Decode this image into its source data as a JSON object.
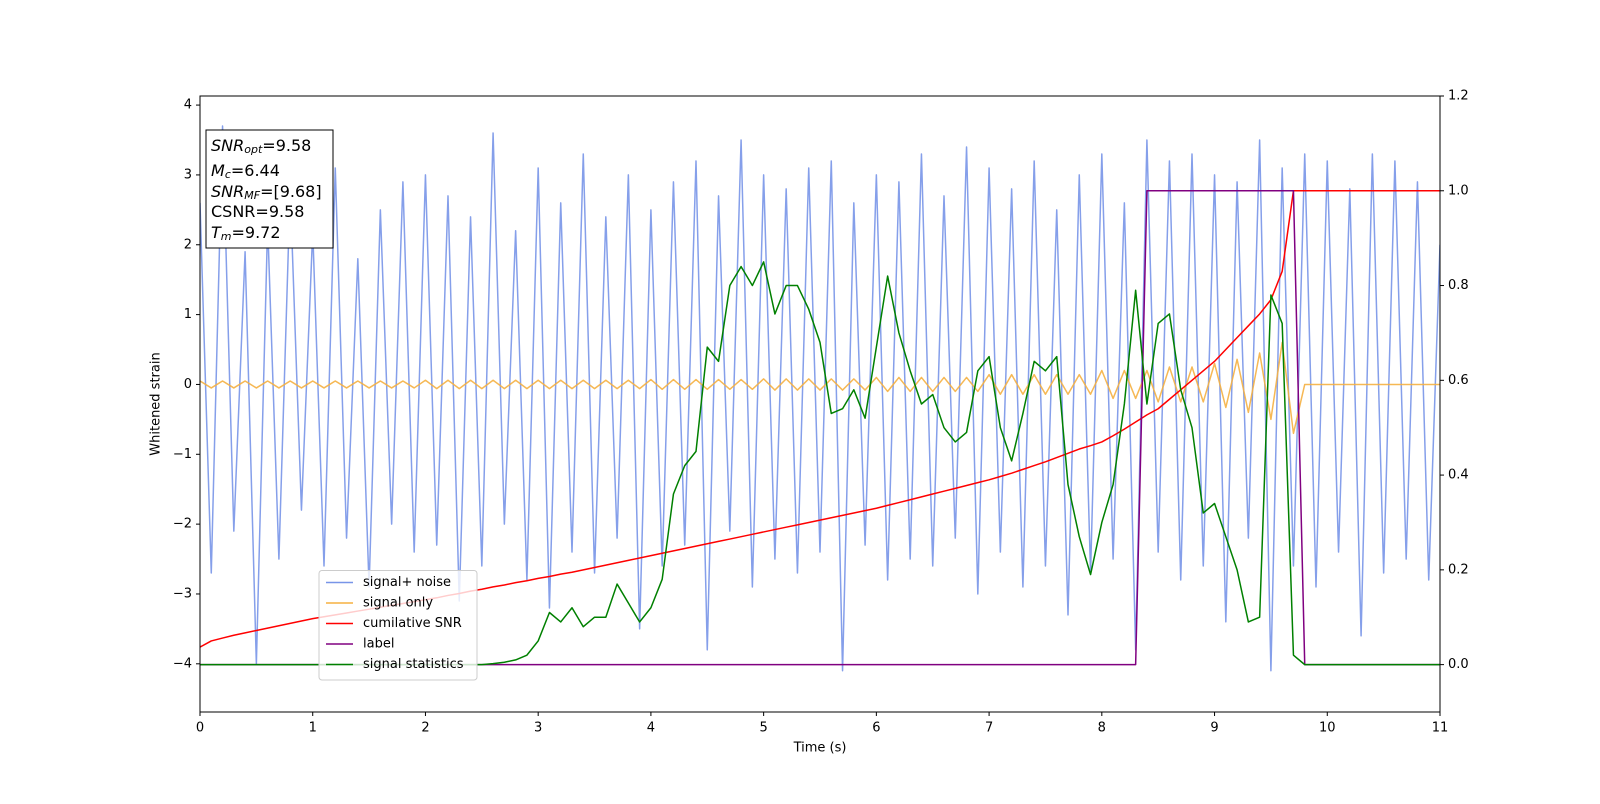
{
  "chart_data": {
    "type": "line",
    "xlabel": "Time (s)",
    "ylabel": "Whitened strain",
    "xlim": [
      0,
      11
    ],
    "ylim": [
      -4.69,
      4.13
    ],
    "y2lim": [
      -0.1,
      1.2
    ],
    "xticks": [
      0,
      1,
      2,
      3,
      4,
      5,
      6,
      7,
      8,
      9,
      10,
      11
    ],
    "yticks": [
      {
        "value": -4,
        "label": "−4"
      },
      {
        "value": -3,
        "label": "−3"
      },
      {
        "value": -2,
        "label": "−2"
      },
      {
        "value": -1,
        "label": "−1"
      },
      0,
      1,
      2,
      3,
      4
    ],
    "y2ticks": [
      {
        "value": 0,
        "label": "0.0"
      },
      {
        "value": 0.2,
        "label": "0.2"
      },
      {
        "value": 0.4,
        "label": "0.4"
      },
      {
        "value": 0.6,
        "label": "0.6"
      },
      {
        "value": 0.8,
        "label": "0.8"
      },
      {
        "value": 1,
        "label": "1.0"
      },
      {
        "value": 1.2,
        "label": "1.2"
      }
    ],
    "legend_loc": "lower left",
    "annotation": [
      [
        "SNR",
        "opt",
        "=9.58"
      ],
      [
        "M",
        "c",
        "=6.44"
      ],
      [
        "SNR",
        "MF",
        "=[9.68]"
      ],
      [
        "CSNR=9.58"
      ],
      [
        "T",
        "m",
        "=9.72"
      ]
    ],
    "x": [
      0,
      0.1,
      0.2,
      0.3,
      0.4,
      0.5,
      0.6,
      0.7,
      0.8,
      0.9,
      1,
      1.1,
      1.2,
      1.3,
      1.4,
      1.5,
      1.6,
      1.7,
      1.8,
      1.9,
      2,
      2.1,
      2.2,
      2.3,
      2.4,
      2.5,
      2.6,
      2.7,
      2.8,
      2.9,
      3,
      3.1,
      3.2,
      3.3,
      3.4,
      3.5,
      3.6,
      3.7,
      3.8,
      3.9,
      4,
      4.1,
      4.2,
      4.3,
      4.4,
      4.5,
      4.6,
      4.7,
      4.8,
      4.9,
      5,
      5.1,
      5.2,
      5.3,
      5.4,
      5.5,
      5.6,
      5.7,
      5.8,
      5.9,
      6,
      6.1,
      6.2,
      6.3,
      6.4,
      6.5,
      6.6,
      6.7,
      6.8,
      6.9,
      7,
      7.1,
      7.2,
      7.3,
      7.4,
      7.5,
      7.6,
      7.7,
      7.8,
      7.9,
      8,
      8.1,
      8.2,
      8.3,
      8.4,
      8.5,
      8.6,
      8.7,
      8.8,
      8.9,
      9,
      9.1,
      9.2,
      9.3,
      9.4,
      9.5,
      9.6,
      9.7,
      9.8,
      9.9,
      10,
      10.1,
      10.2,
      10.3,
      10.4,
      10.5,
      10.6,
      10.7,
      10.8,
      10.9,
      11
    ],
    "series": [
      {
        "name": "signal+ noise",
        "color": "#7895e8",
        "values": [
          2.6,
          -2.7,
          3.7,
          -2.1,
          1.9,
          -4.0,
          2.3,
          -2.5,
          2.8,
          -1.8,
          2.2,
          -2.6,
          3.1,
          -2.2,
          1.8,
          -2.9,
          2.5,
          -2.0,
          2.9,
          -2.4,
          3.0,
          -2.3,
          2.7,
          -3.1,
          2.4,
          -2.6,
          3.6,
          -2.0,
          2.2,
          -2.8,
          3.1,
          -3.2,
          2.6,
          -2.4,
          3.3,
          -2.7,
          2.4,
          -2.2,
          3.0,
          -3.5,
          2.5,
          -2.6,
          2.9,
          -2.3,
          3.2,
          -3.8,
          2.7,
          -2.1,
          3.5,
          -2.9,
          3.0,
          -2.5,
          2.8,
          -2.7,
          3.1,
          -2.4,
          3.2,
          -4.1,
          2.6,
          -2.3,
          3.0,
          -2.8,
          2.9,
          -2.5,
          3.3,
          -2.6,
          2.7,
          -2.2,
          3.4,
          -3.0,
          3.1,
          -2.4,
          2.8,
          -2.9,
          3.2,
          -2.6,
          2.5,
          -3.3,
          3.0,
          -2.7,
          3.3,
          -2.5,
          2.6,
          -3.8,
          3.5,
          -2.4,
          3.2,
          -2.8,
          3.3,
          -2.6,
          3.0,
          -3.4,
          2.9,
          -2.2,
          3.5,
          -4.1,
          3.1,
          -2.6,
          3.3,
          -2.9,
          3.2,
          -2.4,
          2.8,
          -3.6,
          3.3,
          -2.7,
          3.2,
          -2.5,
          2.9,
          -2.8,
          2.0
        ]
      },
      {
        "name": "signal only",
        "color": "#f5b041",
        "values": [
          0.05,
          -0.05,
          0.05,
          -0.05,
          0.05,
          -0.05,
          0.05,
          -0.05,
          0.05,
          -0.05,
          0.05,
          -0.05,
          0.05,
          -0.05,
          0.05,
          -0.05,
          0.05,
          -0.05,
          0.05,
          -0.05,
          0.06,
          -0.06,
          0.06,
          -0.06,
          0.06,
          -0.06,
          0.06,
          -0.06,
          0.06,
          -0.06,
          0.06,
          -0.06,
          0.06,
          -0.06,
          0.06,
          -0.06,
          0.06,
          -0.06,
          0.06,
          -0.06,
          0.07,
          -0.07,
          0.07,
          -0.07,
          0.07,
          -0.07,
          0.07,
          -0.07,
          0.07,
          -0.07,
          0.08,
          -0.08,
          0.08,
          -0.08,
          0.08,
          -0.08,
          0.08,
          -0.08,
          0.08,
          -0.08,
          0.1,
          -0.1,
          0.1,
          -0.1,
          0.1,
          -0.1,
          0.1,
          -0.1,
          0.1,
          -0.1,
          0.14,
          -0.14,
          0.14,
          -0.14,
          0.14,
          -0.14,
          0.14,
          -0.14,
          0.14,
          -0.14,
          0.2,
          -0.2,
          0.2,
          -0.2,
          0.2,
          -0.25,
          0.25,
          -0.25,
          0.25,
          -0.25,
          0.3,
          -0.33,
          0.36,
          -0.4,
          0.45,
          -0.5,
          0.6,
          -0.7,
          0,
          0,
          0,
          0,
          0,
          0,
          0,
          0,
          0,
          0,
          0,
          0,
          0
        ]
      },
      {
        "name": "cumilative SNR",
        "color": "#ff0000",
        "axis": "y2",
        "values": [
          0.037,
          0.05,
          0.056,
          0.062,
          0.067,
          0.072,
          0.077,
          0.082,
          0.087,
          0.092,
          0.097,
          0.101,
          0.105,
          0.109,
          0.113,
          0.117,
          0.121,
          0.125,
          0.129,
          0.133,
          0.137,
          0.141,
          0.146,
          0.15,
          0.155,
          0.159,
          0.164,
          0.168,
          0.173,
          0.177,
          0.182,
          0.186,
          0.191,
          0.195,
          0.2,
          0.205,
          0.21,
          0.215,
          0.22,
          0.225,
          0.23,
          0.235,
          0.24,
          0.245,
          0.25,
          0.255,
          0.26,
          0.265,
          0.27,
          0.275,
          0.28,
          0.285,
          0.29,
          0.295,
          0.3,
          0.305,
          0.31,
          0.315,
          0.32,
          0.325,
          0.33,
          0.336,
          0.342,
          0.348,
          0.354,
          0.36,
          0.366,
          0.372,
          0.378,
          0.384,
          0.39,
          0.397,
          0.404,
          0.412,
          0.42,
          0.428,
          0.437,
          0.446,
          0.455,
          0.462,
          0.47,
          0.483,
          0.497,
          0.512,
          0.527,
          0.54,
          0.56,
          0.58,
          0.6,
          0.62,
          0.64,
          0.665,
          0.69,
          0.715,
          0.74,
          0.77,
          0.83,
          1,
          1,
          1,
          1,
          1,
          1,
          1,
          1,
          1,
          1,
          1,
          1,
          1,
          1
        ]
      },
      {
        "name": "label",
        "color": "#800080",
        "axis": "y2",
        "values": [
          0,
          0,
          0,
          0,
          0,
          0,
          0,
          0,
          0,
          0,
          0,
          0,
          0,
          0,
          0,
          0,
          0,
          0,
          0,
          0,
          0,
          0,
          0,
          0,
          0,
          0,
          0,
          0,
          0,
          0,
          0,
          0,
          0,
          0,
          0,
          0,
          0,
          0,
          0,
          0,
          0,
          0,
          0,
          0,
          0,
          0,
          0,
          0,
          0,
          0,
          0,
          0,
          0,
          0,
          0,
          0,
          0,
          0,
          0,
          0,
          0,
          0,
          0,
          0,
          0,
          0,
          0,
          0,
          0,
          0,
          0,
          0,
          0,
          0,
          0,
          0,
          0,
          0,
          0,
          0,
          0,
          0,
          0,
          0,
          1,
          1,
          1,
          1,
          1,
          1,
          1,
          1,
          1,
          1,
          1,
          1,
          1,
          1,
          0,
          0,
          0,
          0,
          0,
          0,
          0,
          0,
          0,
          0,
          0,
          0,
          0
        ]
      },
      {
        "name": "signal statistics",
        "color": "#008000",
        "axis": "y2",
        "values": [
          0,
          0,
          0,
          0,
          0,
          0,
          0,
          0,
          0,
          0,
          0,
          0,
          0,
          0,
          0,
          0,
          0,
          0,
          0,
          0,
          0,
          0,
          0,
          0,
          0,
          0,
          0.002,
          0.005,
          0.01,
          0.02,
          0.05,
          0.11,
          0.09,
          0.12,
          0.08,
          0.1,
          0.1,
          0.17,
          0.13,
          0.09,
          0.12,
          0.18,
          0.36,
          0.42,
          0.45,
          0.67,
          0.64,
          0.8,
          0.84,
          0.8,
          0.85,
          0.74,
          0.8,
          0.8,
          0.75,
          0.68,
          0.53,
          0.54,
          0.58,
          0.52,
          0.67,
          0.82,
          0.7,
          0.62,
          0.55,
          0.57,
          0.5,
          0.47,
          0.49,
          0.62,
          0.65,
          0.5,
          0.43,
          0.53,
          0.64,
          0.62,
          0.65,
          0.38,
          0.27,
          0.19,
          0.3,
          0.38,
          0.55,
          0.79,
          0.55,
          0.72,
          0.74,
          0.58,
          0.5,
          0.32,
          0.34,
          0.27,
          0.2,
          0.09,
          0.1,
          0.78,
          0.72,
          0.02,
          0,
          0,
          0,
          0,
          0,
          0,
          0,
          0,
          0,
          0,
          0,
          0,
          0
        ]
      }
    ]
  }
}
